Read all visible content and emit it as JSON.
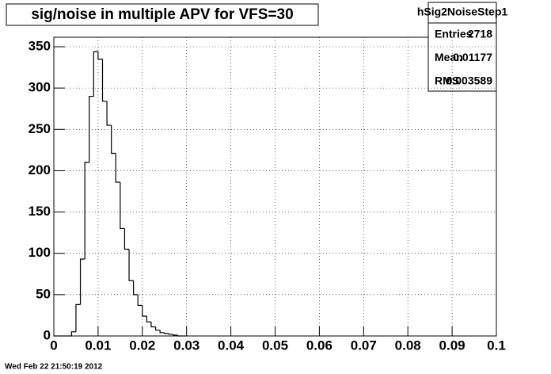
{
  "chart_data": {
    "type": "histogram",
    "title": "sig/noise in multiple APV for VFS=30",
    "bins": [
      0,
      0.001,
      0.002,
      0.003,
      0.004,
      0.005,
      0.006,
      0.007,
      0.008,
      0.009,
      0.01,
      0.011,
      0.012,
      0.013,
      0.014,
      0.015,
      0.016,
      0.017,
      0.018,
      0.019,
      0.02,
      0.021,
      0.022,
      0.023,
      0.024,
      0.025,
      0.026,
      0.027,
      0.028,
      0.029,
      0.03
    ],
    "counts": [
      0,
      0,
      0,
      0,
      5,
      38,
      93,
      210,
      290,
      344,
      335,
      284,
      255,
      221,
      186,
      130,
      105,
      67,
      50,
      37,
      24,
      17,
      11,
      7,
      4,
      3,
      2,
      1,
      0,
      0
    ],
    "color": "#000000",
    "xlim": [
      0,
      0.1
    ],
    "xticks": [
      0,
      0.01,
      0.02,
      0.03,
      0.04,
      0.05,
      0.06,
      0.07,
      0.08,
      0.09,
      0.1
    ],
    "ylim": [
      0,
      361.5
    ],
    "yticks": [
      0,
      50,
      100,
      150,
      200,
      250,
      300,
      350
    ],
    "grid": true,
    "stats": {
      "name": "hSig2NoiseStep1",
      "rows": [
        [
          "Entries",
          2718
        ],
        [
          "Mean",
          0.01177
        ],
        [
          "RMS",
          0.003589
        ]
      ]
    },
    "footer": "Wed Feb 22 21:50:19 2012"
  }
}
